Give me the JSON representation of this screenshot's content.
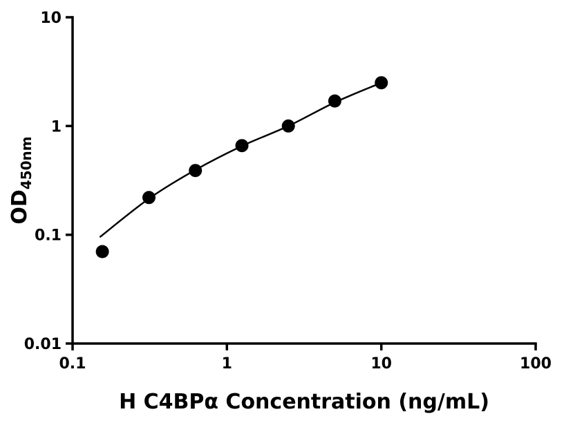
{
  "figure": {
    "background": "#ffffff"
  },
  "chart_data": {
    "type": "scatter",
    "title": "",
    "xlabel": "H C4BPα Concentration (ng/mL)",
    "ylabel": "OD",
    "ylabel_subscript": "450nm",
    "x_scale": "log",
    "y_scale": "log",
    "xlim": [
      0.1,
      100
    ],
    "ylim": [
      0.01,
      10
    ],
    "x_ticks": [
      0.1,
      1,
      10,
      100
    ],
    "x_tick_labels": [
      "0.1",
      "1",
      "10",
      "100"
    ],
    "y_ticks": [
      0.01,
      0.1,
      1,
      10
    ],
    "y_tick_labels": [
      "0.01",
      "0.1",
      "1",
      "10"
    ],
    "grid": false,
    "legend": "none",
    "axis_color": "#000000",
    "marker_color": "#000000",
    "line_color": "#000000",
    "series": [
      {
        "name": "fitted-curve",
        "type": "line",
        "x": [
          0.15,
          0.3125,
          0.625,
          1.25,
          2.5,
          5,
          10
        ],
        "y": [
          0.095,
          0.215,
          0.395,
          0.655,
          1.0,
          1.65,
          2.5
        ]
      },
      {
        "name": "standard-data-points",
        "type": "scatter",
        "marker": "filled-circle",
        "x": [
          0.156,
          0.3125,
          0.625,
          1.25,
          2.5,
          5,
          10
        ],
        "y": [
          0.07,
          0.22,
          0.39,
          0.66,
          1.0,
          1.7,
          2.5
        ]
      }
    ]
  }
}
